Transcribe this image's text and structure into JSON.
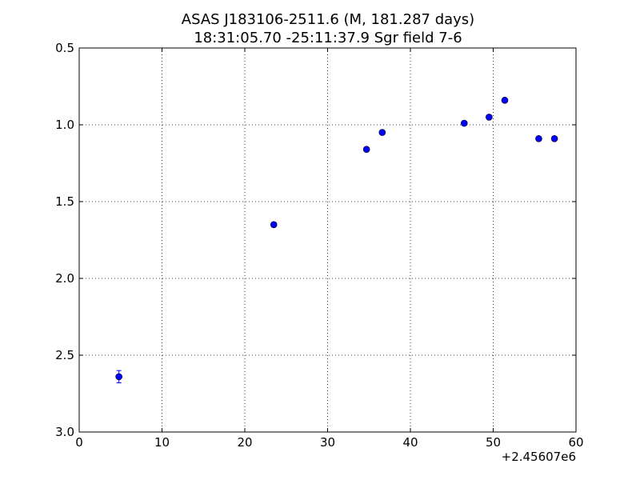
{
  "chart_data": {
    "type": "scatter",
    "title_line1": "ASAS J183106-2511.6  (M, 181.287 days)",
    "title_line2": "18:31:05.70 -25:11:37.9 Sgr field 7-6",
    "x_offset_label": "+2.45607e6",
    "xlim": [
      0,
      60
    ],
    "ylim": [
      0.5,
      3.0
    ],
    "y_inverted": true,
    "grid": true,
    "x_ticks": [
      0,
      10,
      20,
      30,
      40,
      50,
      60
    ],
    "x_tick_labels": [
      "0",
      "10",
      "20",
      "30",
      "40",
      "50",
      "60"
    ],
    "y_ticks": [
      0.5,
      1.0,
      1.5,
      2.0,
      2.5,
      3.0
    ],
    "y_tick_labels": [
      "0.5",
      "1.0",
      "1.5",
      "2.0",
      "2.5",
      "3.0"
    ],
    "marker_color": "#0000ff",
    "errorbar_color": "#0000ff",
    "points": [
      {
        "x": 4.8,
        "y": 2.64,
        "err": 0.04
      },
      {
        "x": 23.5,
        "y": 1.65,
        "err": 0.015
      },
      {
        "x": 34.7,
        "y": 1.16,
        "err": 0.01
      },
      {
        "x": 36.6,
        "y": 1.05,
        "err": 0.01
      },
      {
        "x": 46.5,
        "y": 0.99,
        "err": 0.01
      },
      {
        "x": 49.5,
        "y": 0.95,
        "err": 0.01
      },
      {
        "x": 51.4,
        "y": 0.84,
        "err": 0.01
      },
      {
        "x": 55.5,
        "y": 1.09,
        "err": 0.01
      },
      {
        "x": 57.4,
        "y": 1.09,
        "err": 0.01
      }
    ]
  }
}
